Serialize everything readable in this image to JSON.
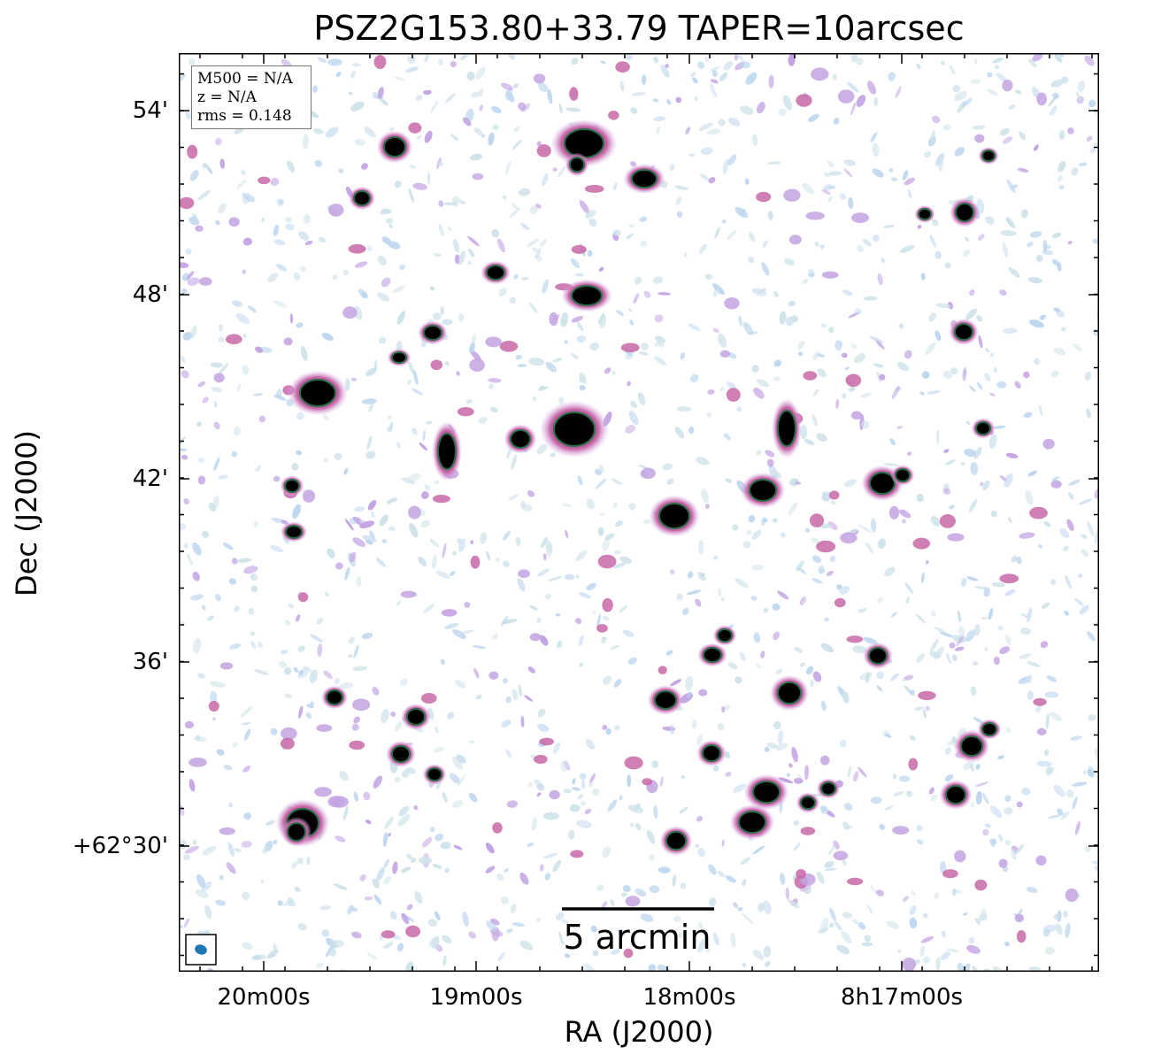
{
  "title": "PSZ2G153.80+33.79 TAPER=10arcsec",
  "xlabel": "RA (J2000)",
  "ylabel": "Dec (J2000)",
  "x_ticks": [
    "20m00s",
    "19m00s",
    "18m00s",
    "8h17m00s"
  ],
  "y_ticks": [
    "54'",
    "48'",
    "42'",
    "36'",
    "+62°30'"
  ],
  "info": {
    "mass": "M500 = N/A",
    "redshift": "z = N/A",
    "rms": "rms = 0.148"
  },
  "scalebar_label": "5 arcmin",
  "colors": {
    "low": "#bfd7ef",
    "mid": "#c3a3e3",
    "high": "#c868a8",
    "core": "#2a6b4a",
    "saturated": "#000000",
    "beam": "#1f77b4"
  }
}
